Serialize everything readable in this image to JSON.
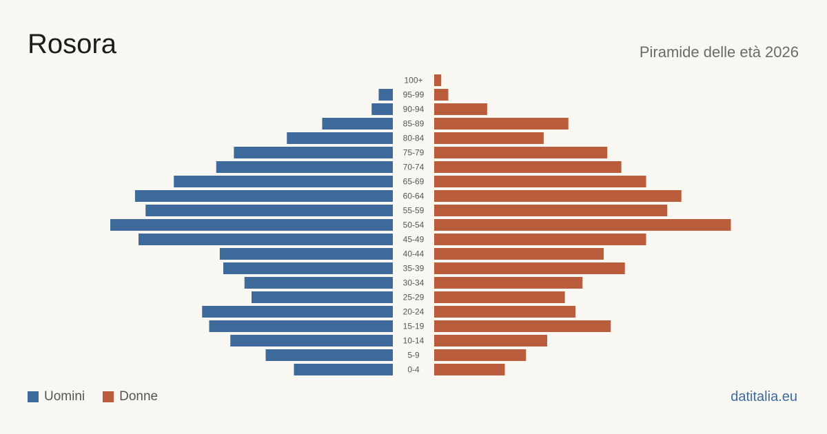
{
  "header": {
    "title": "Rosora",
    "subtitle": "Piramide delle età 2026"
  },
  "legend": {
    "men_label": "Uomini",
    "women_label": "Donne"
  },
  "source": "datitalia.eu",
  "colors": {
    "men": "#3d6a9b",
    "women": "#b95d3c",
    "age_label": "#555555"
  },
  "chart_data": {
    "type": "bar",
    "orientation": "horizontal-pyramid",
    "categories": [
      "100+",
      "95-99",
      "90-94",
      "85-89",
      "80-84",
      "75-79",
      "70-74",
      "65-69",
      "60-64",
      "55-59",
      "50-54",
      "45-49",
      "40-44",
      "35-39",
      "30-34",
      "25-29",
      "20-24",
      "15-19",
      "10-14",
      "5-9",
      "0-4"
    ],
    "series": [
      {
        "name": "Uomini",
        "values": [
          0,
          4,
          6,
          20,
          30,
          45,
          50,
          62,
          73,
          70,
          80,
          72,
          49,
          48,
          42,
          40,
          54,
          52,
          46,
          36,
          28
        ]
      },
      {
        "name": "Donne",
        "values": [
          2,
          4,
          15,
          38,
          31,
          49,
          53,
          60,
          70,
          66,
          84,
          60,
          48,
          54,
          42,
          37,
          40,
          50,
          32,
          26,
          20
        ]
      }
    ],
    "xlabel": "",
    "ylabel": "",
    "grid": false,
    "legend": "bottom-left"
  }
}
